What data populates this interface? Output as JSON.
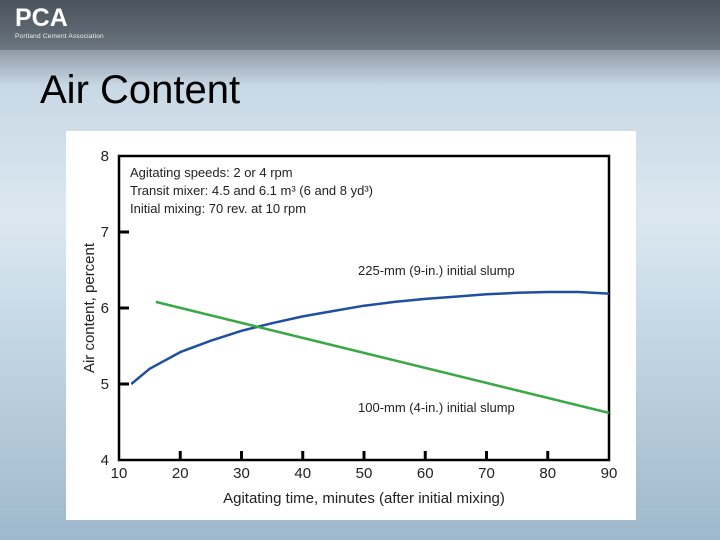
{
  "header": {
    "logo_text": "PCA",
    "logo_subtitle": "Portland Cement Association"
  },
  "slide": {
    "title": "Air Content"
  },
  "colors": {
    "series_225": "#1f4f9e",
    "series_100": "#3aa846",
    "axis": "#000000"
  },
  "chart_data": {
    "type": "line",
    "title": "",
    "xlabel": "Agitating time, minutes (after initial mixing)",
    "ylabel": "Air content, percent",
    "xlim": [
      10,
      90
    ],
    "ylim": [
      4,
      8
    ],
    "x_ticks": [
      10,
      20,
      30,
      40,
      50,
      60,
      70,
      80,
      90
    ],
    "y_ticks": [
      4,
      5,
      6,
      7,
      8
    ],
    "grid": false,
    "legend": "none",
    "annotations": [
      "Agitating speeds: 2 or 4 rpm",
      "Transit mixer: 4.5 and 6.1 m³ (6 and 8 yd³)",
      "Initial mixing: 70 rev. at 10 rpm"
    ],
    "series": [
      {
        "label": "225-mm (9-in.) initial slump",
        "color": "#1f4f9e",
        "x": [
          12,
          15,
          20,
          25,
          30,
          35,
          40,
          45,
          50,
          55,
          60,
          65,
          70,
          75,
          80,
          85,
          90
        ],
        "y": [
          5.0,
          5.2,
          5.42,
          5.57,
          5.7,
          5.8,
          5.89,
          5.96,
          6.03,
          6.08,
          6.12,
          6.15,
          6.18,
          6.2,
          6.21,
          6.21,
          6.19
        ]
      },
      {
        "label": "100-mm (4-in.) initial slump",
        "color": "#3aa846",
        "x": [
          16,
          90
        ],
        "y": [
          6.08,
          4.62
        ]
      }
    ]
  }
}
